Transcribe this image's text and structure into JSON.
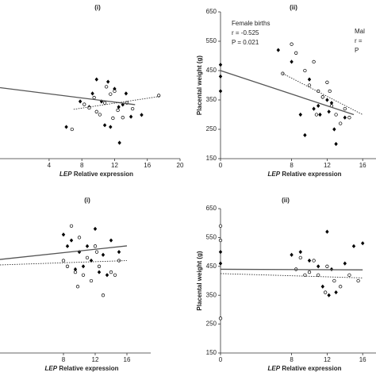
{
  "chart_data": [
    {
      "type": "scatter",
      "title": "(i)",
      "x_label_gene": "LEP",
      "x_label": "Relative expression",
      "xlim": [
        -2,
        20
      ],
      "ylim": [
        150,
        650
      ],
      "xticks": [
        4,
        8,
        12,
        16,
        20
      ],
      "series": [
        {
          "marker": "diamond",
          "color": "#000000",
          "x": [
            6.1,
            7.8,
            9.3,
            9.8,
            11.2,
            12.0,
            12.5,
            13.0,
            13.4,
            10.8,
            11.5,
            12.6,
            14.0,
            15.3,
            8.9,
            10.4
          ],
          "values": [
            258,
            345,
            372,
            420,
            412,
            388,
            326,
            334,
            372,
            264,
            258,
            204,
            293,
            299,
            326,
            345
          ]
        },
        {
          "marker": "circle",
          "color": "#000000",
          "x": [
            6.8,
            8.3,
            8.9,
            9.5,
            10.2,
            10.8,
            11.0,
            11.5,
            12.0,
            12.4,
            13.0,
            13.5,
            14.2,
            17.4,
            9.8,
            11.8
          ],
          "values": [
            250,
            335,
            323,
            358,
            300,
            340,
            395,
            370,
            380,
            315,
            290,
            340,
            320,
            365,
            310,
            288
          ]
        }
      ],
      "trends": [
        {
          "style": "solid",
          "x": [
            -2,
            14.5
          ],
          "y": [
            392,
            334
          ]
        },
        {
          "style": "dotted",
          "x": [
            7,
            17.5
          ],
          "y": [
            318,
            362
          ]
        }
      ]
    },
    {
      "type": "scatter",
      "title": "(ii)",
      "x_label_gene": "LEP",
      "x_label": "Relative expression",
      "y_label": "Placental weight (g)",
      "annotations": [
        "Female births",
        "r = -0.525",
        "P = 0.021"
      ],
      "annotations_cut": [
        "Mal",
        "r =",
        "P"
      ],
      "xlim": [
        0,
        17.5
      ],
      "ylim": [
        150,
        650
      ],
      "xticks": [
        0,
        8,
        12,
        16
      ],
      "yticks": [
        150,
        250,
        350,
        450,
        550,
        650
      ],
      "series": [
        {
          "marker": "diamond",
          "color": "#000000",
          "x": [
            0,
            0,
            0,
            6.5,
            8,
            9,
            10,
            10.5,
            11,
            11.5,
            12,
            12.5,
            12.8,
            13,
            14,
            9.5,
            11.2,
            12.2
          ],
          "values": [
            470,
            430,
            380,
            520,
            480,
            300,
            420,
            320,
            330,
            360,
            350,
            340,
            250,
            200,
            290,
            230,
            300,
            310
          ]
        },
        {
          "marker": "circle",
          "color": "#000000",
          "x": [
            7,
            8,
            8.5,
            9.5,
            10,
            10.5,
            11,
            11.5,
            12,
            12.5,
            13,
            13.5,
            14,
            14.5,
            10.8,
            12.3
          ],
          "values": [
            440,
            540,
            510,
            450,
            400,
            480,
            380,
            360,
            410,
            330,
            300,
            270,
            320,
            290,
            300,
            380
          ]
        }
      ],
      "trends": [
        {
          "style": "solid",
          "x": [
            0,
            15
          ],
          "y": [
            450,
            300
          ]
        },
        {
          "style": "dotted",
          "x": [
            7,
            16
          ],
          "y": [
            440,
            300
          ]
        }
      ]
    },
    {
      "type": "scatter",
      "title": "(i)",
      "x_label_gene": "LEP",
      "x_label": "Relative expression",
      "xlim": [
        0,
        19
      ],
      "ylim": [
        150,
        650
      ],
      "xticks": [
        8,
        12,
        16
      ],
      "series": [
        {
          "marker": "diamond",
          "color": "#000000",
          "x": [
            8,
            9,
            10,
            11,
            12,
            13,
            14,
            15,
            9.5,
            11.5,
            12.5,
            8.5,
            13.5,
            10.5
          ],
          "values": [
            560,
            540,
            500,
            520,
            580,
            490,
            540,
            500,
            440,
            470,
            430,
            520,
            420,
            450
          ]
        },
        {
          "marker": "circle",
          "color": "#000000",
          "x": [
            8,
            8.5,
            9,
            9.5,
            10,
            10.5,
            11,
            11.5,
            12,
            12.5,
            13,
            14,
            15,
            9.8,
            12.2,
            14.5
          ],
          "values": [
            470,
            450,
            590,
            430,
            550,
            420,
            480,
            400,
            520,
            450,
            350,
            430,
            470,
            380,
            500,
            420
          ]
        }
      ],
      "trends": [
        {
          "style": "solid",
          "x": [
            0,
            16
          ],
          "y": [
            474,
            521
          ]
        },
        {
          "style": "dotted",
          "x": [
            0,
            16
          ],
          "y": [
            455,
            470
          ]
        }
      ]
    },
    {
      "type": "scatter",
      "title": "(ii)",
      "x_label_gene": "LEP",
      "x_label": "Relative expression",
      "y_label": "Placental weight (g)",
      "xlim": [
        0,
        17.5
      ],
      "ylim": [
        150,
        650
      ],
      "xticks": [
        0,
        8,
        12,
        16
      ],
      "yticks": [
        150,
        250,
        350,
        450,
        550,
        650
      ],
      "series": [
        {
          "marker": "diamond",
          "color": "#000000",
          "x": [
            0,
            0,
            8,
            9,
            10,
            11,
            12,
            12.5,
            13,
            14,
            15,
            16,
            11.5,
            12.2
          ],
          "values": [
            500,
            460,
            490,
            500,
            470,
            450,
            570,
            440,
            360,
            460,
            520,
            530,
            380,
            350
          ]
        },
        {
          "marker": "circle",
          "color": "#000000",
          "x": [
            0,
            0,
            0,
            8.5,
            9.5,
            10,
            10.5,
            11,
            12,
            12.8,
            13.5,
            14.5,
            15.5,
            11.8,
            9
          ],
          "values": [
            590,
            540,
            270,
            440,
            420,
            430,
            470,
            420,
            450,
            400,
            380,
            420,
            400,
            360,
            480
          ]
        }
      ],
      "trends": [
        {
          "style": "solid",
          "x": [
            0,
            16
          ],
          "y": [
            440,
            438
          ]
        },
        {
          "style": "dotted",
          "x": [
            0,
            16
          ],
          "y": [
            425,
            410
          ]
        }
      ]
    }
  ]
}
